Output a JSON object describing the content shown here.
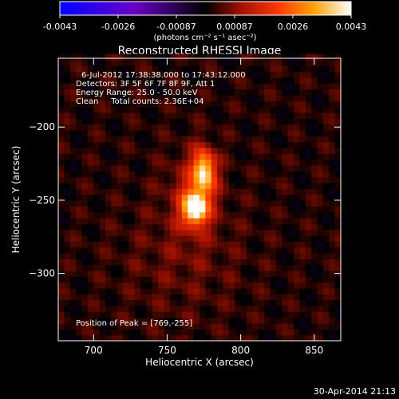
{
  "chart_data": {
    "type": "heatmap",
    "title": "Reconstructed RHESSI Image",
    "xlabel": "Heliocentric X (arcsec)",
    "ylabel": "Heliocentric Y (arcsec)",
    "xlim": [
      676,
      868
    ],
    "ylim": [
      -346,
      -153
    ],
    "x_ticks": [
      700,
      750,
      800,
      850
    ],
    "y_ticks": [
      -200,
      -250,
      -300
    ],
    "colorbar": {
      "ticks": [
        "-0.0043",
        "-0.0026",
        "-0.00087",
        "0.00087",
        "0.0026",
        "0.0043"
      ],
      "min": -0.0043,
      "max": 0.0043,
      "units_line": "(photons cm⁻² s⁻¹ asec⁻²)"
    },
    "annotations": [
      "6-Jul-2012 17:38:38.000 to 17:43:12.000",
      "Detectors: 3F 5F 6F 7F 8F 9F, Att 1",
      "Energy Range: 25.0 - 50.0 keV",
      "Clean     Total counts: 2.36E+04"
    ],
    "peak_label": "Position of Peak = [769,-255]",
    "peak": [
      769,
      -255
    ],
    "sources": [
      {
        "x": 769,
        "y": -255,
        "sx": 5.5,
        "sy": 7.5,
        "amp": 0.0043
      },
      {
        "x": 775,
        "y": -230,
        "sx": 5.0,
        "sy": 10.0,
        "amp": 0.0035
      },
      {
        "x": 768,
        "y": -245,
        "sx": 12,
        "sy": 20,
        "amp": 0.001
      },
      {
        "x": 760,
        "y": -290,
        "sx": 30,
        "sy": 30,
        "amp": 0.0004
      }
    ]
  },
  "footer": {
    "timestamp": "30-Apr-2014 21:13"
  }
}
